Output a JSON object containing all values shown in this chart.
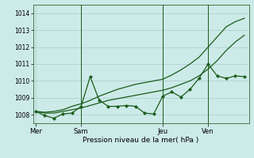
{
  "bg_color": "#cceae8",
  "grid_color": "#aacccc",
  "line_color": "#1a5c1a",
  "xlabel": "Pression niveau de la mer( hPa )",
  "ylim": [
    1007.5,
    1014.5
  ],
  "yticks": [
    1008,
    1009,
    1010,
    1011,
    1012,
    1013,
    1014
  ],
  "day_labels": [
    "Mer",
    "Sam",
    "Jeu",
    "Ven"
  ],
  "day_positions": [
    0,
    5,
    14,
    19
  ],
  "vline_positions": [
    5,
    14,
    19
  ],
  "xlim": [
    -0.3,
    23.5
  ],
  "smooth1_x": [
    0,
    1,
    2,
    3,
    4,
    5,
    6,
    7,
    8,
    9,
    10,
    11,
    12,
    13,
    14,
    15,
    16,
    17,
    18,
    19,
    20,
    21,
    22,
    23
  ],
  "smooth1_y": [
    1008.2,
    1008.1,
    1008.1,
    1008.2,
    1008.3,
    1008.4,
    1008.55,
    1008.7,
    1008.85,
    1008.95,
    1009.05,
    1009.15,
    1009.25,
    1009.35,
    1009.45,
    1009.6,
    1009.8,
    1010.0,
    1010.3,
    1010.7,
    1011.2,
    1011.8,
    1012.3,
    1012.7
  ],
  "smooth2_x": [
    0,
    1,
    2,
    3,
    4,
    5,
    6,
    7,
    8,
    9,
    10,
    11,
    12,
    13,
    14,
    15,
    16,
    17,
    18,
    19,
    20,
    21,
    22,
    23
  ],
  "smooth2_y": [
    1008.2,
    1008.15,
    1008.2,
    1008.3,
    1008.5,
    1008.65,
    1008.85,
    1009.1,
    1009.3,
    1009.5,
    1009.65,
    1009.8,
    1009.9,
    1010.0,
    1010.1,
    1010.35,
    1010.65,
    1011.0,
    1011.4,
    1012.0,
    1012.6,
    1013.2,
    1013.5,
    1013.7
  ],
  "jagged_x": [
    0,
    1,
    2,
    3,
    4,
    5,
    6,
    7,
    8,
    9,
    10,
    11,
    12,
    13,
    14,
    15,
    16,
    17,
    18,
    19,
    20,
    21,
    22,
    23
  ],
  "jagged_y": [
    1008.2,
    1007.95,
    1007.8,
    1008.05,
    1008.1,
    1008.5,
    1010.25,
    1008.85,
    1008.5,
    1008.5,
    1008.55,
    1008.5,
    1008.1,
    1008.05,
    1009.1,
    1009.35,
    1009.05,
    1009.5,
    1010.15,
    1011.0,
    1010.3,
    1010.15,
    1010.3,
    1010.25
  ]
}
